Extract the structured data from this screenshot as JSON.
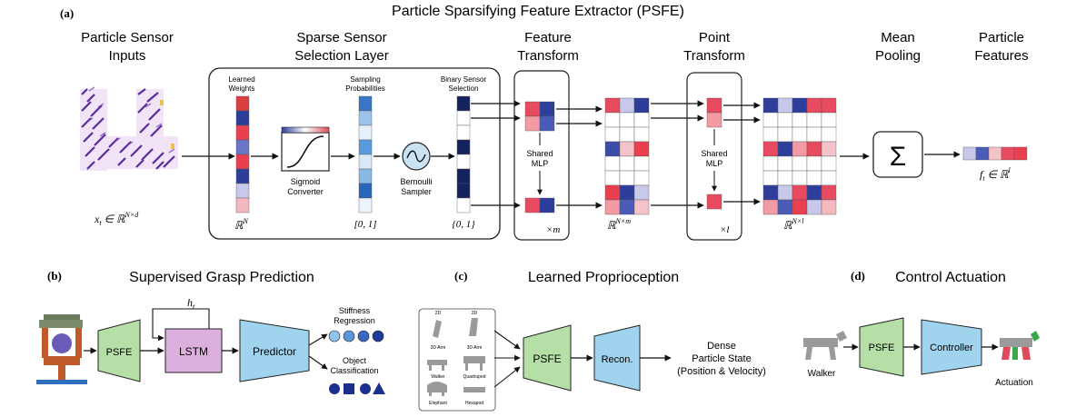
{
  "panel_a": {
    "letter": "(a)",
    "title": "Particle Sparsifying Feature Extractor (PSFE)",
    "inputs_label": [
      "Particle Sensor",
      "Inputs"
    ],
    "input_math": "x_t ∈ ℝ^{N×d}",
    "sparse_layer_label": [
      "Sparse Sensor",
      "Selection Layer"
    ],
    "learned_weights": [
      "Learned",
      "Weights"
    ],
    "sampling_probs": [
      "Sampling",
      "Probabilities"
    ],
    "binary_selection": [
      "Binary Sensor",
      "Selection"
    ],
    "sigmoid": [
      "Sigmoid",
      "Converter"
    ],
    "bernoulli": [
      "Bernoulli",
      "Sampler"
    ],
    "rn": "ℝ^N",
    "interval01": "[0, 1]",
    "set01": "{0, 1}",
    "feature_transform": [
      "Feature",
      "Transform"
    ],
    "shared_mlp": [
      "Shared",
      "MLP"
    ],
    "times_m": "×m",
    "rnm": "ℝ^{N×m}",
    "point_transform": [
      "Point",
      "Transform"
    ],
    "times_l": "×l",
    "rnl": "ℝ^{N×l}",
    "mean_pooling": [
      "Mean",
      "Pooling"
    ],
    "sigma": "Σ",
    "particle_features": [
      "Particle",
      "Features"
    ],
    "output_math": "f_t ∈ ℝ^l"
  },
  "panel_b": {
    "letter": "(b)",
    "title": "Supervised Grasp Prediction",
    "psfe": "PSFE",
    "lstm": "LSTM",
    "predictor": "Predictor",
    "hidden": "h_t",
    "stiffness": [
      "Stiffness",
      "Regression"
    ],
    "object": [
      "Object",
      "Classification"
    ]
  },
  "panel_c": {
    "letter": "(c)",
    "title": "Learned Proprioception",
    "col_2d": "2D",
    "col_3d": "3D",
    "grid_labels": [
      "2D Arm",
      "3D Arm",
      "Walker",
      "Quadruped",
      "Elephant",
      "Hexapod"
    ],
    "psfe": "PSFE",
    "recon": "Recon.",
    "dense": [
      "Dense",
      "Particle State",
      "(Position & Velocity)"
    ]
  },
  "panel_d": {
    "letter": "(d)",
    "title": "Control Actuation",
    "psfe": "PSFE",
    "controller": "Controller",
    "walker": "Walker",
    "actuation": "Actuation"
  },
  "colors": {
    "psfe_green": "#b5dfa6",
    "lstm_purple": "#dcb0dc",
    "predictor_blue": "#9fd3ee",
    "red": "#e04a5a",
    "blue": "#2d3e9a",
    "stiffness_blue": "#3a66c4",
    "class_navy": "#1c2f8c"
  }
}
